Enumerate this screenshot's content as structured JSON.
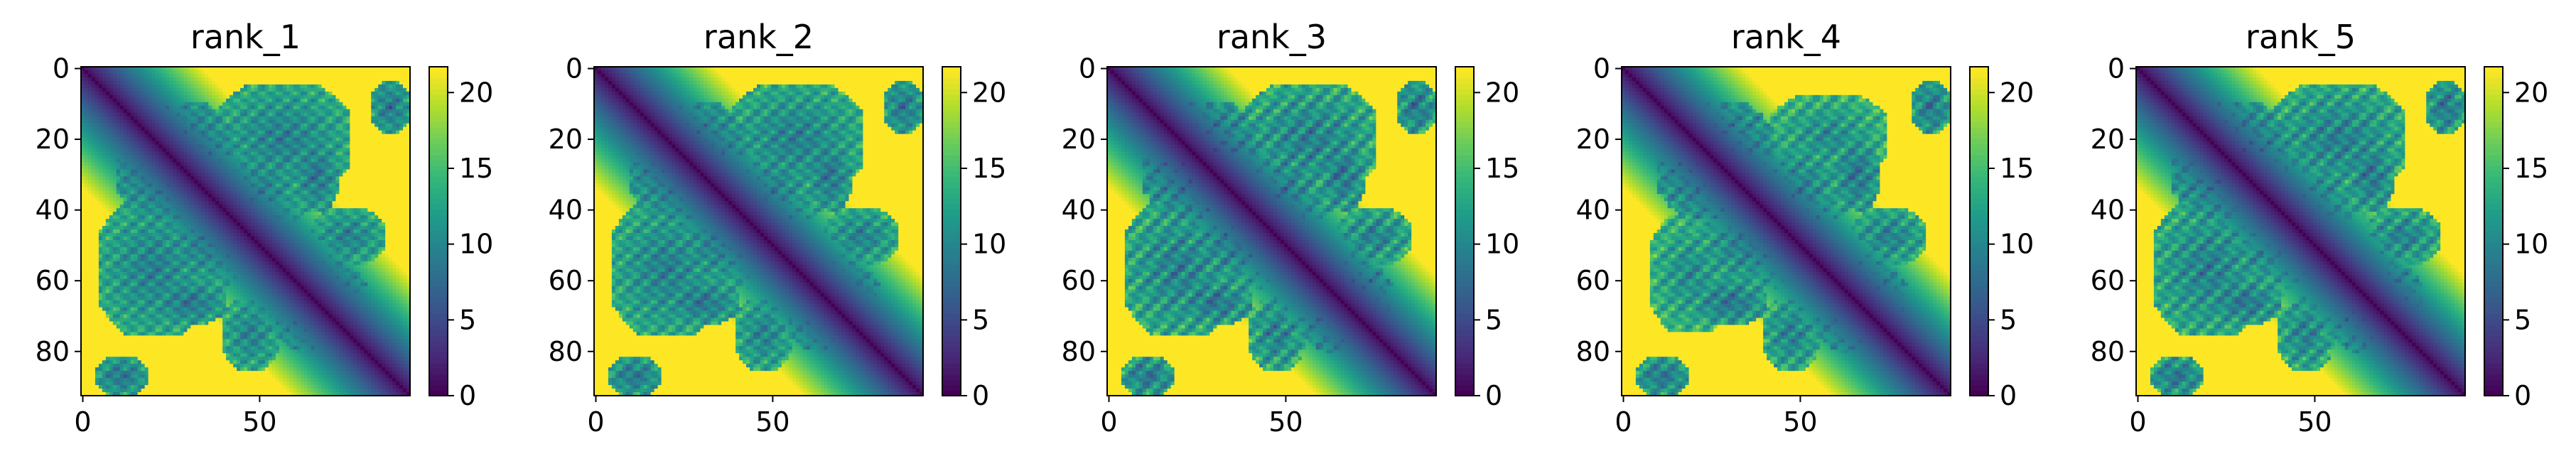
{
  "chart_data": [
    {
      "type": "heatmap",
      "title": "rank_1",
      "matrix_size": 93,
      "x_ticks": [
        0,
        50
      ],
      "y_ticks": [
        0,
        20,
        40,
        60,
        80
      ],
      "colorbar": {
        "range": [
          0,
          21.7
        ],
        "ticks": [
          0,
          5,
          10,
          15,
          20
        ],
        "colormap": "viridis"
      },
      "description": "symmetric predicted aligned error / distance map; diagonal ~0, background saturated ~21.7"
    },
    {
      "type": "heatmap",
      "title": "rank_2",
      "matrix_size": 93,
      "x_ticks": [
        0,
        50
      ],
      "y_ticks": [
        0,
        20,
        40,
        60,
        80
      ],
      "colorbar": {
        "range": [
          0,
          21.7
        ],
        "ticks": [
          0,
          5,
          10,
          15,
          20
        ],
        "colormap": "viridis"
      }
    },
    {
      "type": "heatmap",
      "title": "rank_3",
      "matrix_size": 93,
      "x_ticks": [
        0,
        50
      ],
      "y_ticks": [
        0,
        20,
        40,
        60,
        80
      ],
      "colorbar": {
        "range": [
          0,
          21.7
        ],
        "ticks": [
          0,
          5,
          10,
          15,
          20
        ],
        "colormap": "viridis"
      }
    },
    {
      "type": "heatmap",
      "title": "rank_4",
      "matrix_size": 93,
      "x_ticks": [
        0,
        50
      ],
      "y_ticks": [
        0,
        20,
        40,
        60,
        80
      ],
      "colorbar": {
        "range": [
          0,
          21.7
        ],
        "ticks": [
          0,
          5,
          10,
          15,
          20
        ],
        "colormap": "viridis"
      }
    },
    {
      "type": "heatmap",
      "title": "rank_5",
      "matrix_size": 93,
      "x_ticks": [
        0,
        50
      ],
      "y_ticks": [
        0,
        20,
        40,
        60,
        80
      ],
      "colorbar": {
        "range": [
          0,
          21.7
        ],
        "ticks": [
          0,
          5,
          10,
          15,
          20
        ],
        "colormap": "viridis"
      }
    }
  ],
  "colors": {
    "viridis_low": "#440154",
    "viridis_mid": "#21918c",
    "viridis_high": "#fde725"
  }
}
